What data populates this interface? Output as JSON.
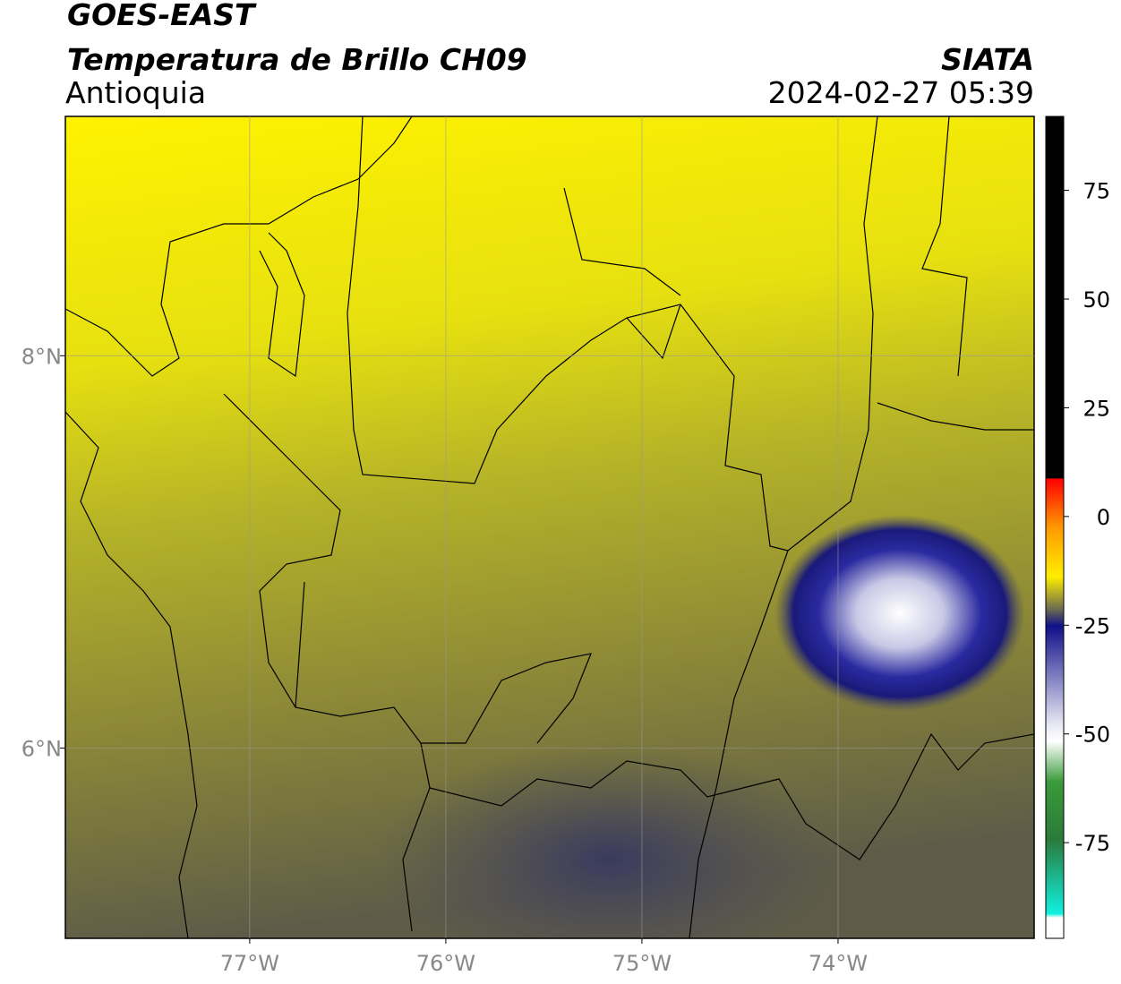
{
  "header": {
    "satellite": "GOES-EAST",
    "product": "Temperatura de Brillo CH09",
    "region": "Antioquia",
    "source": "SIATA",
    "datetime": "2024-02-27 05:39"
  },
  "map": {
    "xlim": [
      -77.94,
      -73.0
    ],
    "ylim": [
      5.03,
      9.22
    ],
    "grid": true,
    "xticks": [
      {
        "value": -77,
        "label": "77°W"
      },
      {
        "value": -76,
        "label": "76°W"
      },
      {
        "value": -75,
        "label": "75°W"
      },
      {
        "value": -74,
        "label": "74°W"
      }
    ],
    "yticks": [
      {
        "value": 8,
        "label": "8°N"
      },
      {
        "value": 6,
        "label": "6°N"
      }
    ]
  },
  "colorbar": {
    "clim": [
      -97,
      92
    ],
    "ticks": [
      75,
      50,
      25,
      0,
      -25,
      -50,
      -75
    ]
  }
}
